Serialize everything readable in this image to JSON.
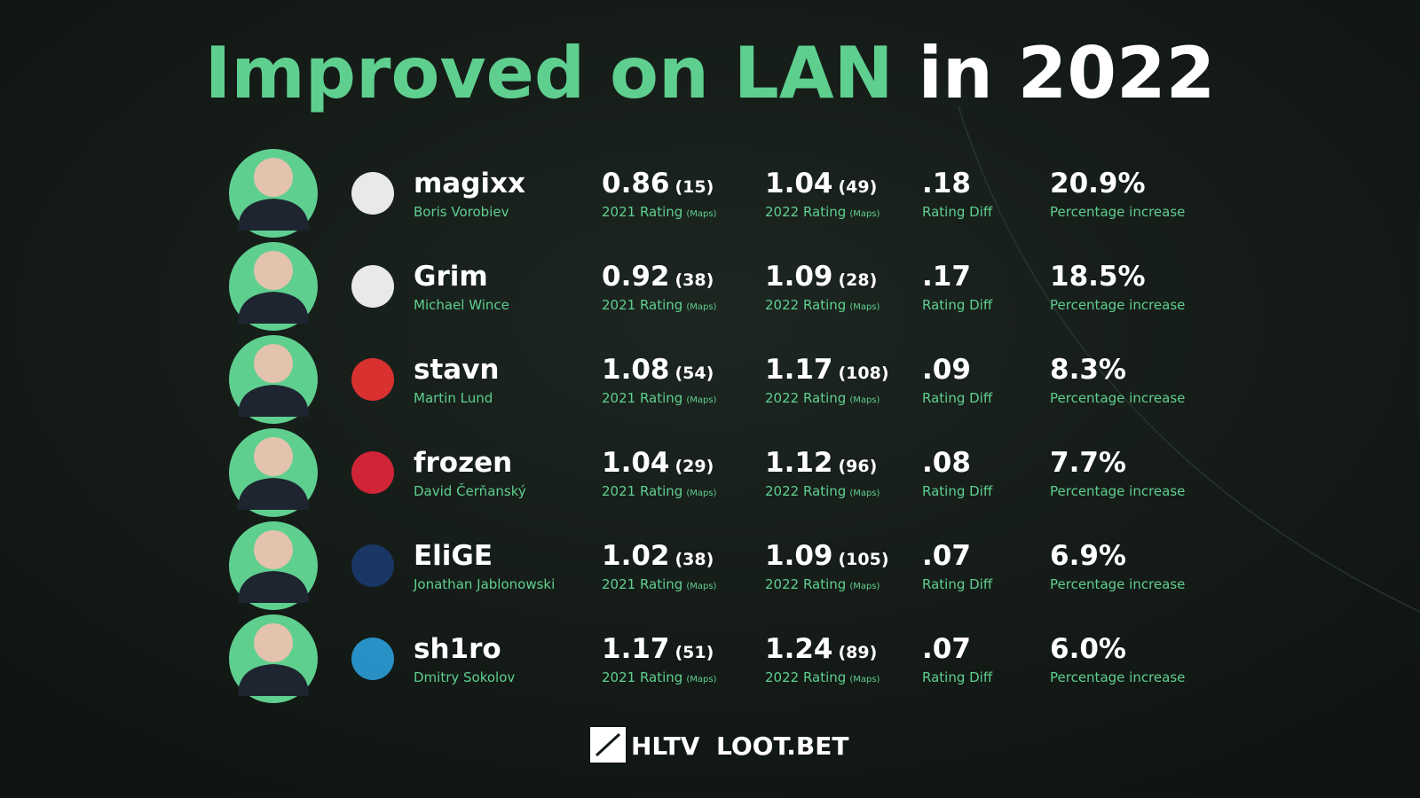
{
  "title": {
    "highlight": "Improved on LAN",
    "rest": "in 2022"
  },
  "labels": {
    "rating_2021": "2021 Rating",
    "rating_2022": "2022 Rating",
    "maps": "(Maps)",
    "diff": "Rating Diff",
    "pct": "Percentage increase"
  },
  "players": [
    {
      "nick": "magixx",
      "name": "Boris Vorobiev",
      "rating_2021": "0.86",
      "maps_2021": "(15)",
      "rating_2022": "1.04",
      "maps_2022": "(49)",
      "diff": ".18",
      "pct": "20.9%"
    },
    {
      "nick": "Grim",
      "name": "Michael Wince",
      "rating_2021": "0.92",
      "maps_2021": "(38)",
      "rating_2022": "1.09",
      "maps_2022": "(28)",
      "diff": ".17",
      "pct": "18.5%"
    },
    {
      "nick": "stavn",
      "name": "Martin Lund",
      "rating_2021": "1.08",
      "maps_2021": "(54)",
      "rating_2022": "1.17",
      "maps_2022": "(108)",
      "diff": ".09",
      "pct": "8.3%"
    },
    {
      "nick": "frozen",
      "name": "David Čerňanský",
      "rating_2021": "1.04",
      "maps_2021": "(29)",
      "rating_2022": "1.12",
      "maps_2022": "(96)",
      "diff": ".08",
      "pct": "7.7%"
    },
    {
      "nick": "EliGE",
      "name": "Jonathan Jablonowski",
      "rating_2021": "1.02",
      "maps_2021": "(38)",
      "rating_2022": "1.09",
      "maps_2022": "(105)",
      "diff": ".07",
      "pct": "6.9%"
    },
    {
      "nick": "sh1ro",
      "name": "Dmitry Sokolov",
      "rating_2021": "1.17",
      "maps_2021": "(51)",
      "rating_2022": "1.24",
      "maps_2022": "(89)",
      "diff": ".07",
      "pct": "6.0%"
    }
  ],
  "footer": {
    "left": "HLTV",
    "right": "LOOT.BET"
  }
}
